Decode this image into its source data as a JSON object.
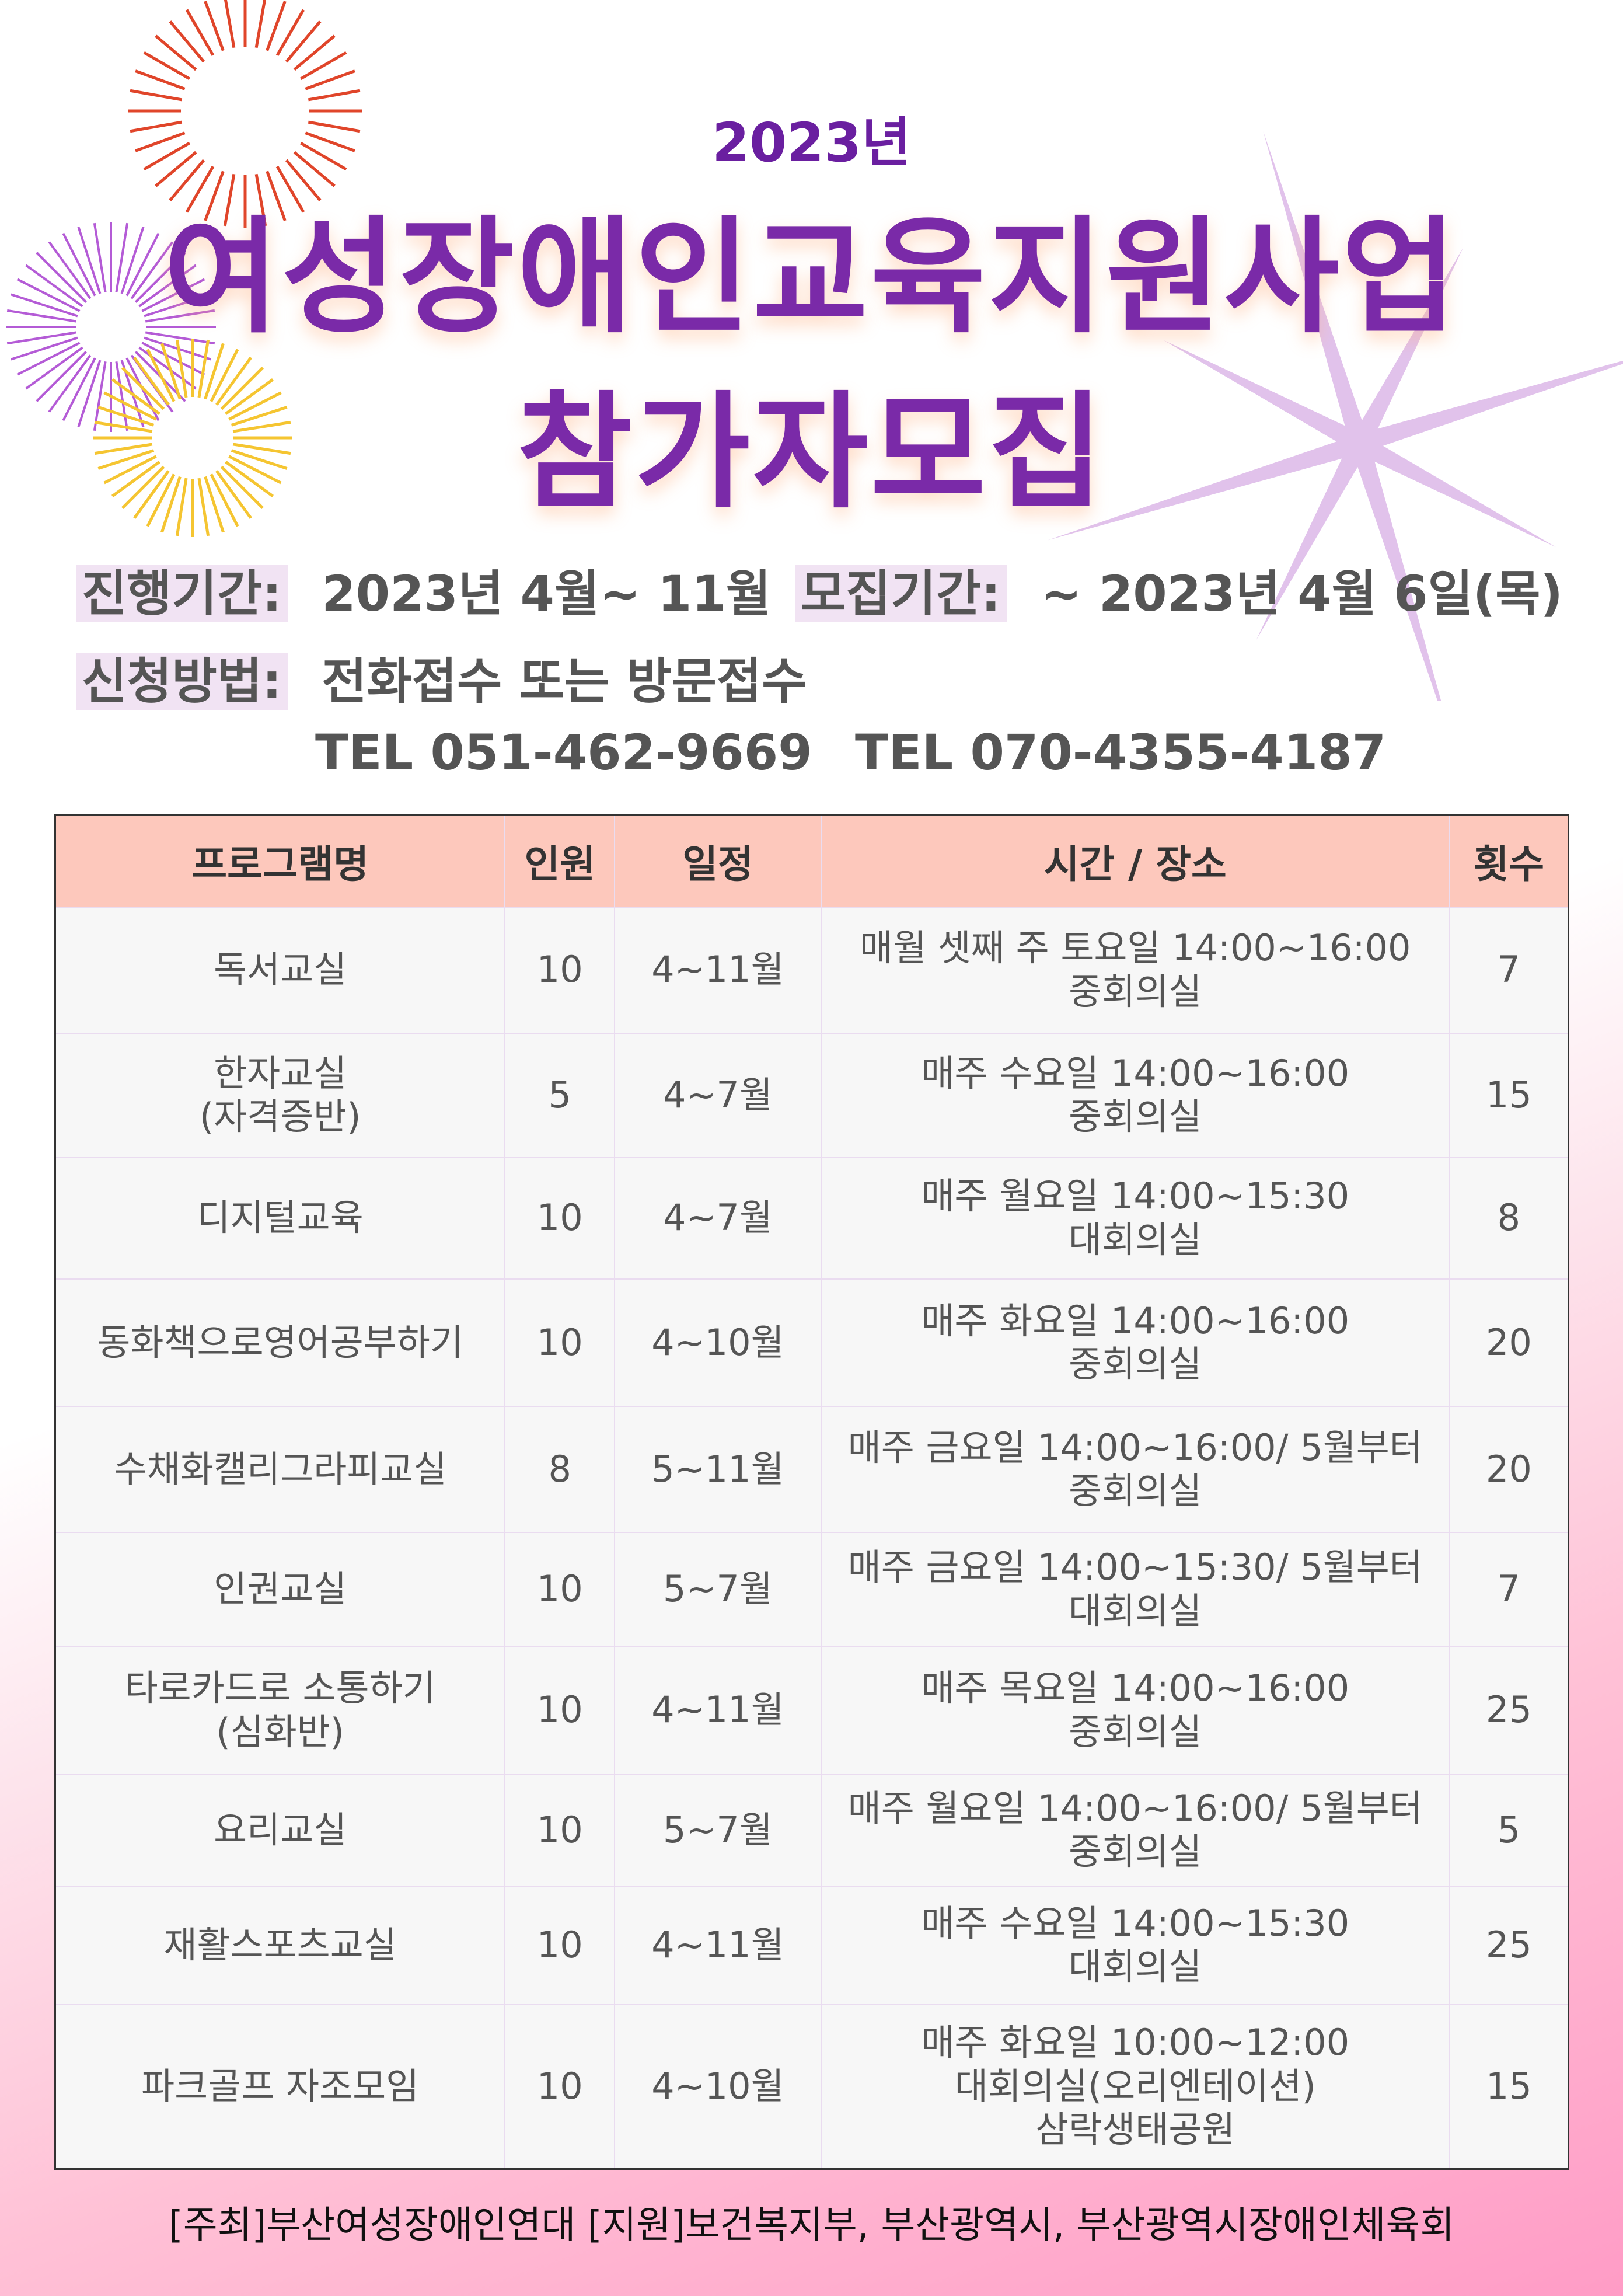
{
  "header": {
    "year": "2023년",
    "title_line1": "여성장애인교육지원사업",
    "title_line2": "참가자모집"
  },
  "info": {
    "period_label": "진행기간:",
    "period_value": "2023년 4월~ 11월",
    "recruit_label": "모집기간:",
    "recruit_value": "~ 2023년 4월 6일(목)",
    "method_label": "신청방법:",
    "method_value": "전화접수 또는 방문접수",
    "tel1": "TEL  051-462-9669",
    "tel2": "TEL  070-4355-4187"
  },
  "table": {
    "headers": [
      "프로그램명",
      "인원",
      "일정",
      "시간 / 장소",
      "횟수"
    ],
    "rows": [
      {
        "name": [
          "독서교실"
        ],
        "people": "10",
        "schedule": "4~11월",
        "time": [
          "매월 셋째 주 토요일 14:00~16:00",
          "중회의실"
        ],
        "count": "7"
      },
      {
        "name": [
          "한자교실",
          "(자격증반)"
        ],
        "people": "5",
        "schedule": "4~7월",
        "time": [
          "매주 수요일 14:00~16:00",
          "중회의실"
        ],
        "count": "15"
      },
      {
        "name": [
          "디지털교육"
        ],
        "people": "10",
        "schedule": "4~7월",
        "time": [
          "매주 월요일 14:00~15:30",
          "대회의실"
        ],
        "count": "8"
      },
      {
        "name": [
          "동화책으로영어공부하기"
        ],
        "people": "10",
        "schedule": "4~10월",
        "time": [
          "매주 화요일 14:00~16:00",
          "중회의실"
        ],
        "count": "20"
      },
      {
        "name": [
          "수채화캘리그라피교실"
        ],
        "people": "8",
        "schedule": "5~11월",
        "time": [
          "매주 금요일 14:00~16:00/ 5월부터",
          "중회의실"
        ],
        "count": "20"
      },
      {
        "name": [
          "인권교실"
        ],
        "people": "10",
        "schedule": "5~7월",
        "time": [
          "매주 금요일 14:00~15:30/ 5월부터",
          "대회의실"
        ],
        "count": "7"
      },
      {
        "name": [
          "타로카드로 소통하기",
          "(심화반)"
        ],
        "people": "10",
        "schedule": "4~11월",
        "time": [
          "매주 목요일 14:00~16:00",
          "중회의실"
        ],
        "count": "25"
      },
      {
        "name": [
          "요리교실"
        ],
        "people": "10",
        "schedule": "5~7월",
        "time": [
          "매주 월요일 14:00~16:00/ 5월부터",
          "중회의실"
        ],
        "count": "5"
      },
      {
        "name": [
          "재활스포츠교실"
        ],
        "people": "10",
        "schedule": "4~11월",
        "time": [
          "매주 수요일 14:00~15:30",
          "대회의실"
        ],
        "count": "25"
      },
      {
        "name": [
          "파크골프 자조모임"
        ],
        "people": "10",
        "schedule": "4~10월",
        "time": [
          "매주 화요일 10:00~12:00",
          "대회의실(오리엔테이션)",
          "삼락생태공원"
        ],
        "count": "15"
      }
    ]
  },
  "footer": "[주최]부산여성장애인연대  [지원]보건복지부, 부산광역시, 부산광역시장애인체육회",
  "colors": {
    "title": "#7a2aa8",
    "header_bg": "#fdc8bc",
    "label_bg": "#f1e3f3",
    "pink": "#ff9cc6"
  }
}
